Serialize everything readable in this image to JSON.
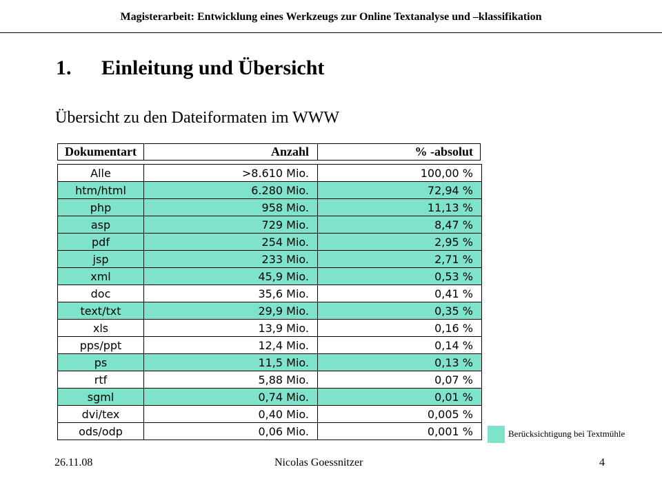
{
  "header": {
    "title": "Magisterarbeit: Entwicklung eines Werkzeugs zur Online Textanalyse und –klassifikation"
  },
  "section": {
    "number": "1.",
    "title": "Einleitung und Übersicht"
  },
  "subtitle": "Übersicht zu den Dateiformaten im WWW",
  "table": {
    "columns": [
      "Dokumentart",
      "Anzahl",
      "% -absolut"
    ],
    "rows": [
      {
        "type": "Alle",
        "count": ">8.610 Mio.",
        "percent": "100,00 %",
        "highlighted": false
      },
      {
        "type": "htm/html",
        "count": "6.280 Mio.",
        "percent": "72,94 %",
        "highlighted": true
      },
      {
        "type": "php",
        "count": "958 Mio.",
        "percent": "11,13 %",
        "highlighted": true
      },
      {
        "type": "asp",
        "count": "729 Mio.",
        "percent": "8,47 %",
        "highlighted": true
      },
      {
        "type": "pdf",
        "count": "254 Mio.",
        "percent": "2,95 %",
        "highlighted": true
      },
      {
        "type": "jsp",
        "count": "233 Mio.",
        "percent": "2,71 %",
        "highlighted": true
      },
      {
        "type": "xml",
        "count": "45,9 Mio.",
        "percent": "0,53 %",
        "highlighted": true
      },
      {
        "type": "doc",
        "count": "35,6 Mio.",
        "percent": "0,41 %",
        "highlighted": false
      },
      {
        "type": "text/txt",
        "count": "29,9 Mio.",
        "percent": "0,35 %",
        "highlighted": true
      },
      {
        "type": "xls",
        "count": "13,9 Mio.",
        "percent": "0,16 %",
        "highlighted": false
      },
      {
        "type": "pps/ppt",
        "count": "12,4 Mio.",
        "percent": "0,14 %",
        "highlighted": false
      },
      {
        "type": "ps",
        "count": "11,5 Mio.",
        "percent": "0,13 %",
        "highlighted": true
      },
      {
        "type": "rtf",
        "count": "5,88 Mio.",
        "percent": "0,07 %",
        "highlighted": false
      },
      {
        "type": "sgml",
        "count": "0,74 Mio.",
        "percent": "0,01 %",
        "highlighted": true
      },
      {
        "type": "dvi/tex",
        "count": "0,40 Mio.",
        "percent": "0,005 %",
        "highlighted": false
      },
      {
        "type": "ods/odp",
        "count": "0,06 Mio.",
        "percent": "0,001 %",
        "highlighted": false
      }
    ]
  },
  "legend": {
    "label": "Berücksichtigung bei Textmühle",
    "color": "#7fe3cc"
  },
  "footer": {
    "date": "26.11.08",
    "author": "Nicolas Goessnitzer",
    "page": "4"
  }
}
